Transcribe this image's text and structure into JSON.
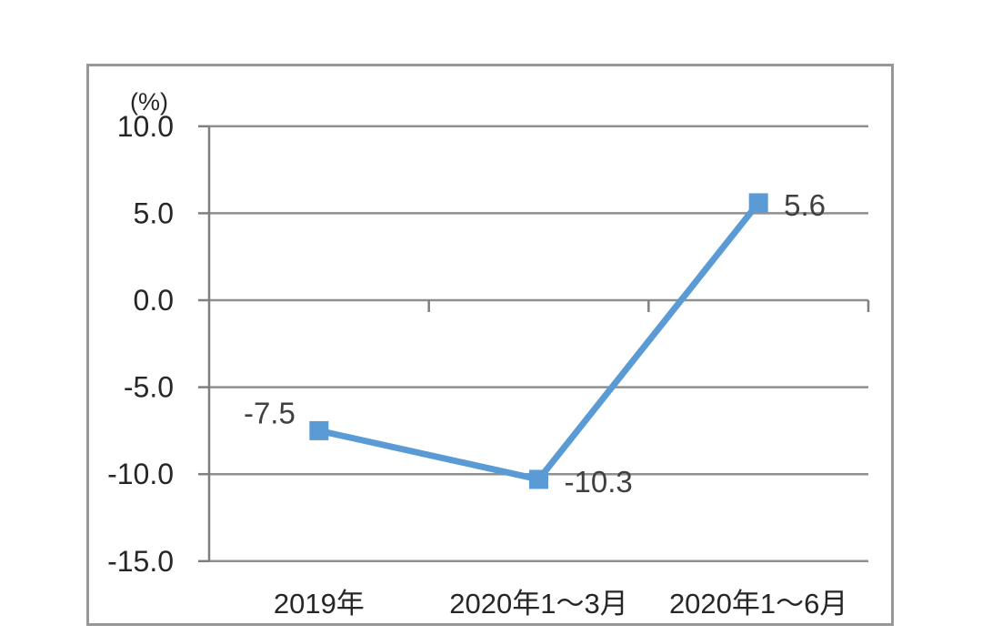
{
  "chart_data": {
    "type": "line",
    "title": "",
    "unit_label": "(%)",
    "categories": [
      "2019年",
      "2020年1～3月",
      "2020年1～6月"
    ],
    "series": [
      {
        "name": "",
        "values": [
          -7.5,
          -10.3,
          5.6
        ],
        "data_labels": [
          "-7.5",
          "-10.3",
          "5.6"
        ],
        "label_sides": [
          "left",
          "right",
          "right"
        ],
        "color": "#5B9BD5",
        "marker": "square"
      }
    ],
    "y_axis": {
      "ticks": [
        10.0,
        5.0,
        0.0,
        -5.0,
        -10.0,
        -15.0
      ],
      "tick_labels": [
        "10.0",
        "5.0",
        "0.0",
        "-5.0",
        "-10.0",
        "-15.0"
      ],
      "min": -15.0,
      "max": 10.0
    },
    "ylim": [
      -15.0,
      10.0
    ],
    "grid": true,
    "legend": "none",
    "colors": {
      "accent": "#5B9BD5",
      "gridline": "#8f8f8f",
      "axis": "#7f7f7f",
      "frame": "#979797",
      "tick_text": "#262626",
      "data_label_text": "#404040"
    }
  }
}
